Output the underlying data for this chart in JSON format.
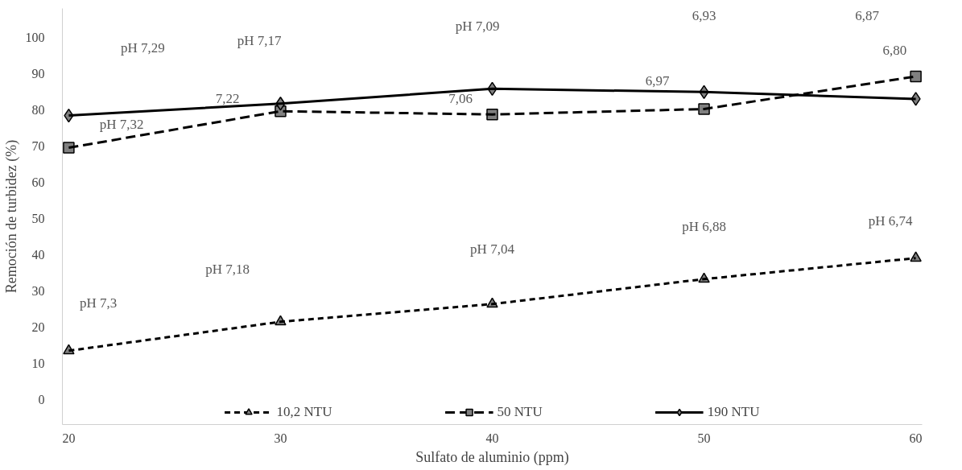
{
  "chart_data": {
    "type": "line",
    "xlabel": "Sulfato de aluminio (ppm)",
    "ylabel": "Remoción de turbidez (%)",
    "x": [
      20,
      30,
      40,
      50,
      60
    ],
    "xlim": [
      19.7,
      60.3
    ],
    "xticks": [
      20,
      30,
      40,
      50,
      60
    ],
    "ylim": [
      -7,
      108
    ],
    "yticks": [
      0,
      10,
      20,
      30,
      40,
      50,
      60,
      70,
      80,
      90,
      100
    ],
    "grid": false,
    "legend": "bottom",
    "series": [
      {
        "name": "10,2 NTU",
        "color": "#000000",
        "marker": "triangle",
        "line_style": "dotted",
        "values": [
          13.4,
          21.4,
          26.3,
          33.2,
          39.0
        ]
      },
      {
        "name": "50 NTU",
        "color": "#000000",
        "marker": "square",
        "line_style": "dashed",
        "values": [
          69.5,
          79.6,
          78.7,
          80.2,
          89.2
        ]
      },
      {
        "name": "190 NTU",
        "color": "#000000",
        "marker": "diamond",
        "line_style": "solid",
        "values": [
          78.4,
          81.7,
          85.8,
          84.9,
          83.0
        ]
      }
    ],
    "annotations": [
      "pH 7,29",
      "pH 7,17",
      "pH 7,09",
      "6,93",
      "6,87",
      "pH 7,32",
      "7,22",
      "7,06",
      "6,97",
      "6,80",
      "pH 7,3",
      "pH 7,18",
      "pH 7,04",
      "pH 6,88",
      "pH 6,74"
    ]
  }
}
